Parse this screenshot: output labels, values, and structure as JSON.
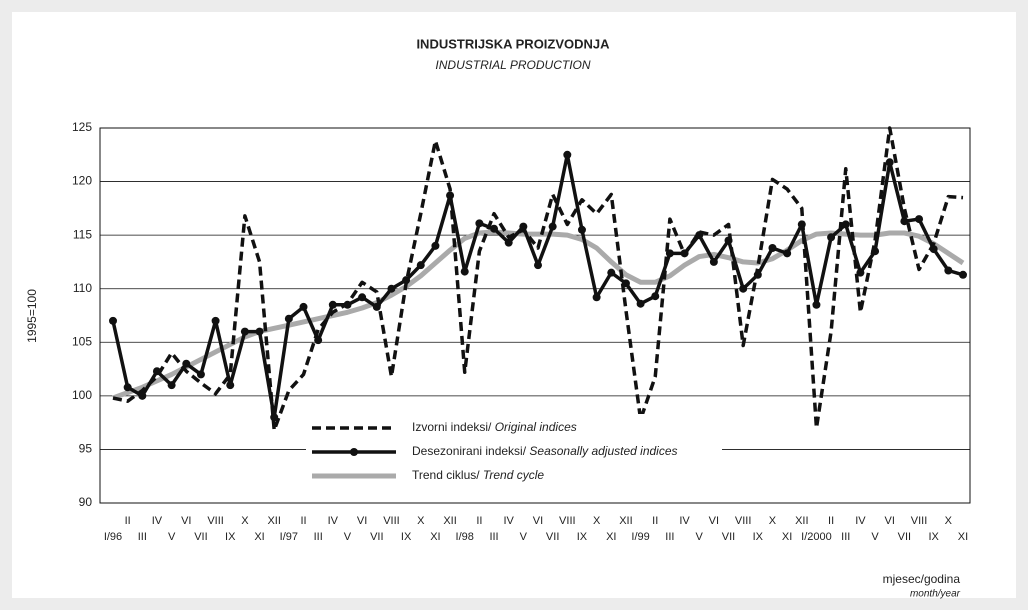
{
  "chart_data": {
    "type": "line",
    "title": "INDUSTRIJSKA PROIZVODNJA",
    "subtitle": "INDUSTRIAL PRODUCTION",
    "y_label": "1995=100",
    "x_label": "mjesec/godina",
    "x_label_sub": "month/year",
    "categories": [
      "I/96",
      "II",
      "III",
      "IV",
      "V",
      "VI",
      "VII",
      "VIII",
      "IX",
      "X",
      "XI",
      "XII",
      "I/97",
      "II",
      "III",
      "IV",
      "V",
      "VI",
      "VII",
      "VIII",
      "IX",
      "X",
      "XI",
      "XII",
      "I/98",
      "II",
      "III",
      "IV",
      "V",
      "VI",
      "VII",
      "VIII",
      "IX",
      "X",
      "XI",
      "XII",
      "I/99",
      "II",
      "III",
      "IV",
      "V",
      "VI",
      "VII",
      "VIII",
      "IX",
      "X",
      "XI",
      "XII",
      "I/2000",
      "II",
      "III",
      "IV",
      "V",
      "VI",
      "VII",
      "VIII",
      "IX",
      "X",
      "XI"
    ],
    "series": [
      {
        "name": "Izvorni indeksi/ Original indices",
        "color": "#111111",
        "dashed": true,
        "values": [
          99.8,
          99.5,
          100.5,
          101.8,
          104,
          102.3,
          101.2,
          100.2,
          102,
          116.8,
          112.5,
          96.8,
          100.5,
          102,
          106.2,
          107.8,
          108.6,
          110.6,
          109.7,
          101.8,
          110.5,
          117,
          123.8,
          119.3,
          102.2,
          113.5,
          117,
          114.8,
          115.5,
          113.8,
          118.8,
          116,
          118.3,
          117,
          118.8,
          108,
          97.8,
          101.8,
          116.5,
          113.2,
          115.3,
          115,
          116,
          104.7,
          112,
          120.2,
          119.3,
          117.5,
          97,
          106,
          121.2,
          107.8,
          114.5,
          125,
          117.5,
          111.8,
          114.2,
          118.6,
          118.5
        ]
      },
      {
        "name": "Desezonirani indeksi/ Seasonally adjusted indices",
        "color": "#111111",
        "markers": true,
        "values": [
          107,
          100.8,
          100,
          102.3,
          101,
          103,
          102,
          107,
          101,
          106,
          106,
          98,
          107.2,
          108.3,
          105.2,
          108.5,
          108.5,
          109.2,
          108.3,
          110,
          110.8,
          112.2,
          114,
          118.7,
          111.6,
          116.1,
          115.6,
          114.3,
          115.8,
          112.2,
          115.8,
          122.5,
          115.5,
          109.2,
          111.5,
          110.5,
          108.6,
          109.3,
          113.3,
          113.3,
          115,
          112.5,
          114.5,
          110,
          111.3,
          113.8,
          113.3,
          116,
          108.5,
          114.8,
          116,
          111.5,
          113.5,
          121.8,
          116.3,
          116.5,
          113.7,
          111.7,
          111.3
        ]
      },
      {
        "name": "Trend ciklus/ Trend cycle",
        "color": "#aaaaaa",
        "values": [
          99.8,
          100.3,
          100.8,
          101.4,
          102,
          102.7,
          103.4,
          104.1,
          104.8,
          105.5,
          106,
          106.3,
          106.6,
          106.9,
          107.2,
          107.5,
          107.8,
          108.2,
          108.7,
          109.4,
          110.2,
          111.2,
          112.4,
          113.6,
          114.7,
          115.2,
          115.3,
          115.2,
          115.1,
          115.1,
          115.1,
          115,
          114.6,
          113.8,
          112.5,
          111.3,
          110.6,
          110.6,
          111.2,
          112.2,
          113,
          113.2,
          112.9,
          112.5,
          112.4,
          112.8,
          113.6,
          114.5,
          115.1,
          115.2,
          115.1,
          115,
          115,
          115.2,
          115.2,
          114.9,
          114.2,
          113.3,
          112.4
        ]
      }
    ],
    "ylim": [
      90,
      125
    ],
    "yticks": [
      90,
      95,
      100,
      105,
      110,
      115,
      120,
      125
    ],
    "grid": true
  }
}
